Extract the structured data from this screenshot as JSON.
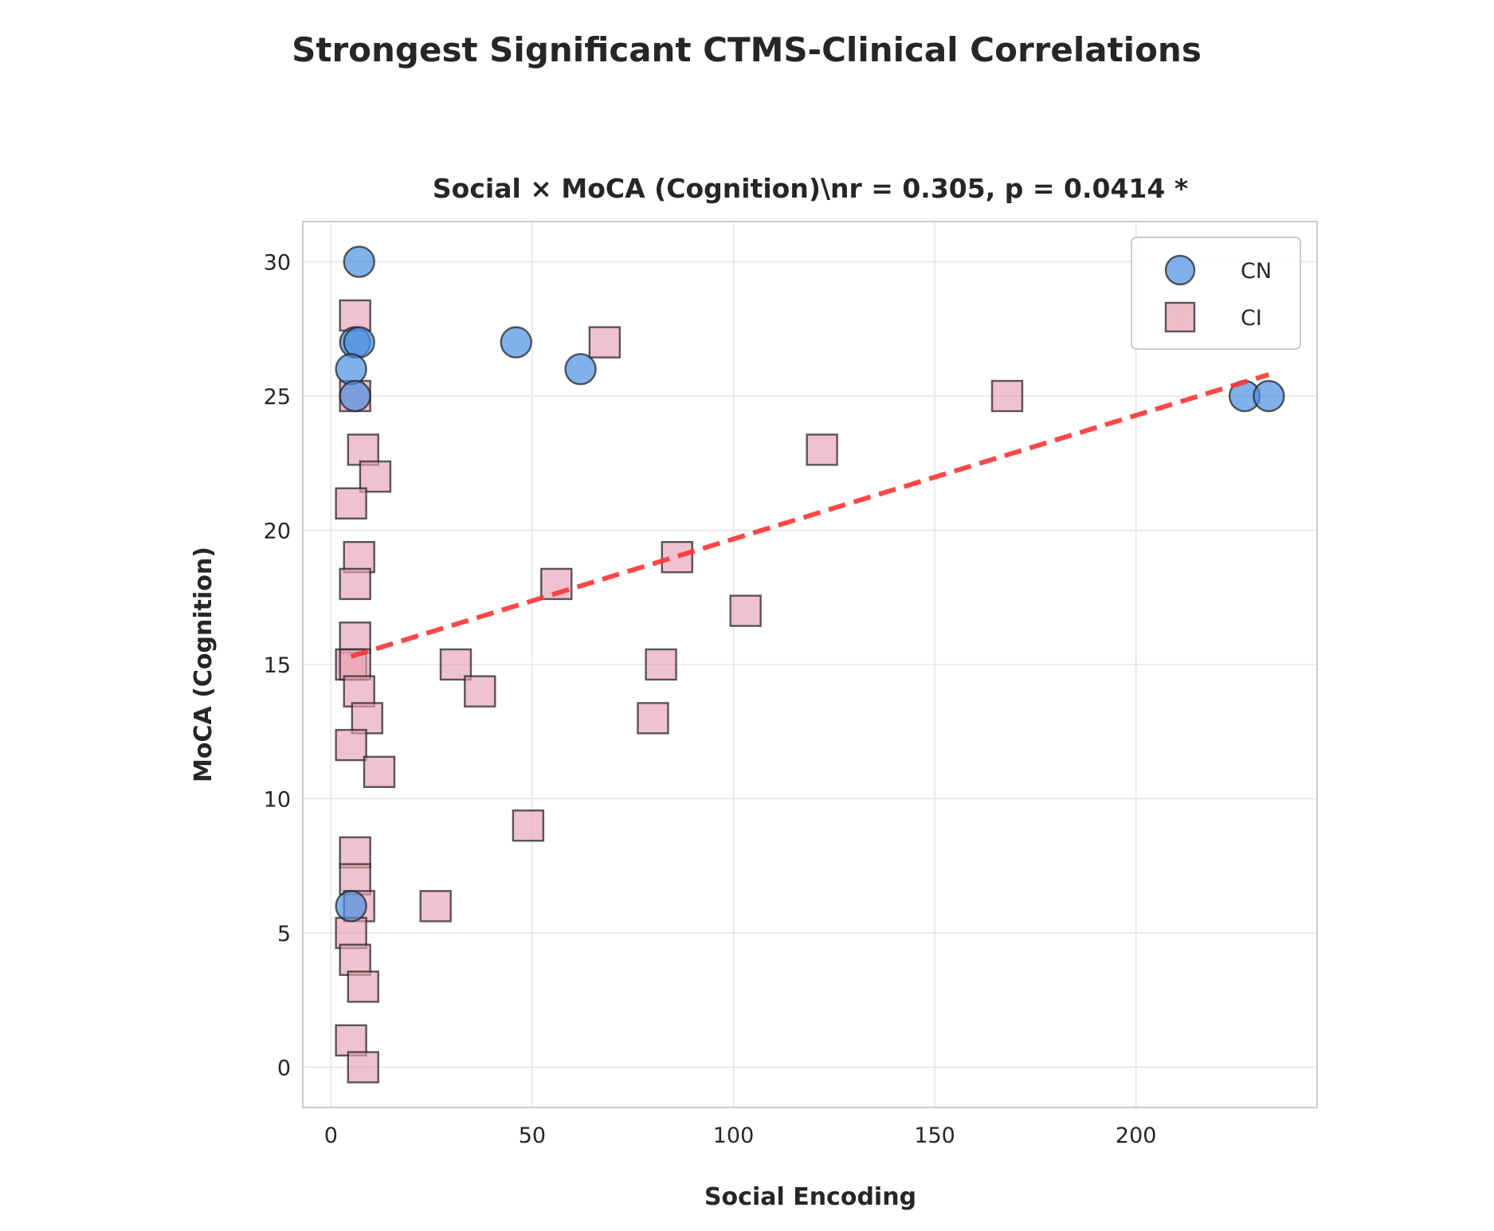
{
  "figure_title": "Strongest Significant CTMS-Clinical Correlations",
  "chart_data": {
    "type": "scatter",
    "title": "Social × MoCA (Cognition)\\nr = 0.305, p = 0.0414 *",
    "xlabel": "Social Encoding",
    "ylabel": "MoCA (Cognition)",
    "xlim": [
      -7,
      245
    ],
    "ylim": [
      -1.5,
      31.5
    ],
    "xticks": [
      0,
      50,
      100,
      150,
      200
    ],
    "yticks": [
      0,
      5,
      10,
      15,
      20,
      25,
      30
    ],
    "grid": true,
    "legend_position": "top-right",
    "series": [
      {
        "name": "CN",
        "marker": "circle",
        "color": "#4a90e2",
        "points": [
          {
            "x": 7,
            "y": 30
          },
          {
            "x": 6,
            "y": 27
          },
          {
            "x": 7,
            "y": 27
          },
          {
            "x": 5,
            "y": 26
          },
          {
            "x": 6,
            "y": 25
          },
          {
            "x": 46,
            "y": 27
          },
          {
            "x": 62,
            "y": 26
          },
          {
            "x": 227,
            "y": 25
          },
          {
            "x": 233,
            "y": 25
          },
          {
            "x": 5,
            "y": 6
          }
        ]
      },
      {
        "name": "CI",
        "marker": "square",
        "color": "#e8a0b4",
        "points": [
          {
            "x": 6,
            "y": 28
          },
          {
            "x": 6,
            "y": 25
          },
          {
            "x": 8,
            "y": 23
          },
          {
            "x": 11,
            "y": 22
          },
          {
            "x": 5,
            "y": 21
          },
          {
            "x": 7,
            "y": 19
          },
          {
            "x": 6,
            "y": 18
          },
          {
            "x": 6,
            "y": 16
          },
          {
            "x": 5,
            "y": 15
          },
          {
            "x": 6,
            "y": 15
          },
          {
            "x": 7,
            "y": 14
          },
          {
            "x": 9,
            "y": 13
          },
          {
            "x": 5,
            "y": 12
          },
          {
            "x": 12,
            "y": 11
          },
          {
            "x": 6,
            "y": 8
          },
          {
            "x": 6,
            "y": 7
          },
          {
            "x": 7,
            "y": 6
          },
          {
            "x": 5,
            "y": 5
          },
          {
            "x": 6,
            "y": 4
          },
          {
            "x": 8,
            "y": 3
          },
          {
            "x": 5,
            "y": 1
          },
          {
            "x": 8,
            "y": 0
          },
          {
            "x": 68,
            "y": 27
          },
          {
            "x": 168,
            "y": 25
          },
          {
            "x": 122,
            "y": 23
          },
          {
            "x": 86,
            "y": 19
          },
          {
            "x": 56,
            "y": 18
          },
          {
            "x": 103,
            "y": 17
          },
          {
            "x": 31,
            "y": 15
          },
          {
            "x": 82,
            "y": 15
          },
          {
            "x": 37,
            "y": 14
          },
          {
            "x": 80,
            "y": 13
          },
          {
            "x": 49,
            "y": 9
          },
          {
            "x": 26,
            "y": 6
          }
        ]
      }
    ],
    "trend_line": {
      "style": "dashed",
      "color": "#ff3333",
      "points": [
        {
          "x": 5,
          "y": 15.3
        },
        {
          "x": 233,
          "y": 25.8
        }
      ]
    }
  }
}
